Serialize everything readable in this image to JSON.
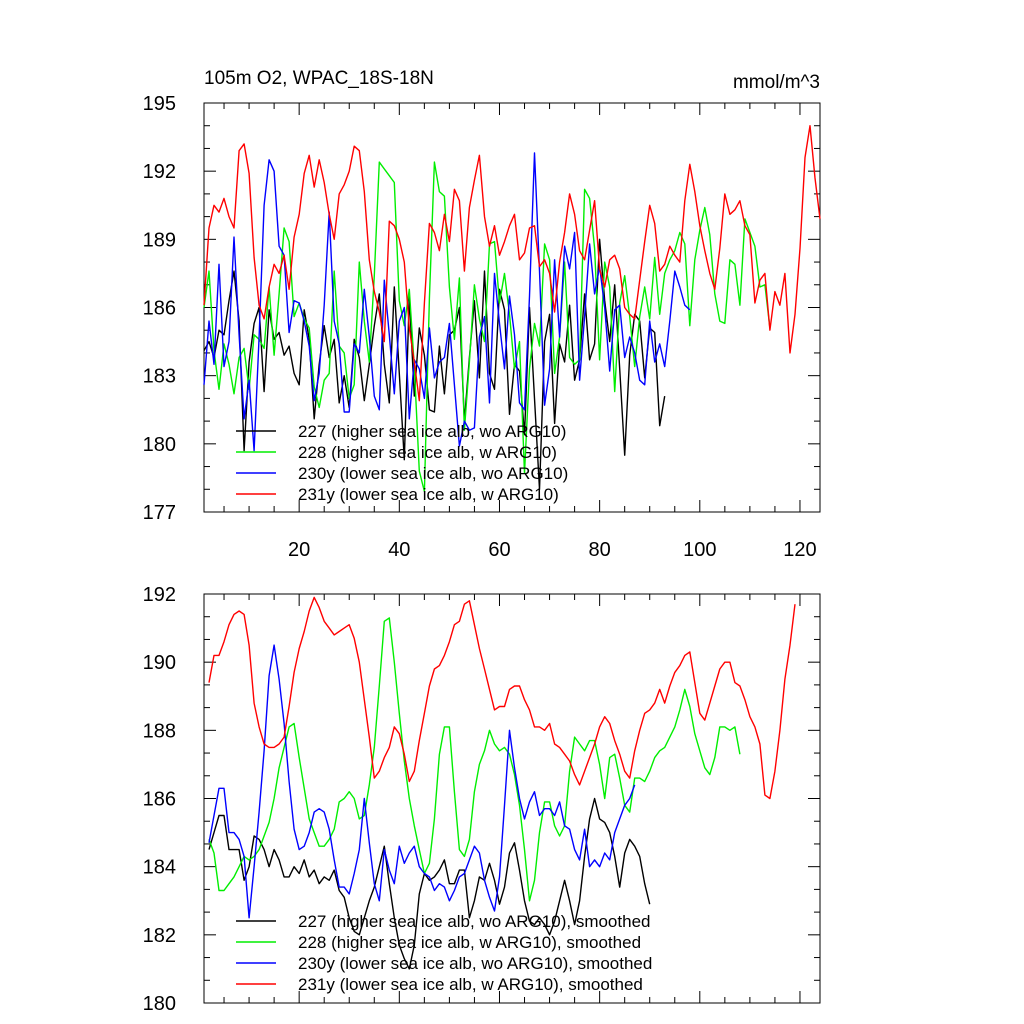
{
  "chart_data": [
    {
      "type": "line",
      "title": "105m O2, WPAC_18S-18N",
      "units": "mmol/m^3",
      "ylim": [
        177,
        195
      ],
      "yticks": [
        177,
        180,
        183,
        186,
        189,
        192,
        195
      ],
      "xlim": [
        1,
        124
      ],
      "xticks": [
        20,
        40,
        60,
        80,
        100,
        120
      ],
      "legend_position": "bottom-left",
      "series": [
        {
          "name": "227 (higher sea ice alb, wo ARG10)",
          "color": "#000000",
          "x_start": 1,
          "values": [
            184.1,
            184.5,
            183.8,
            185.0,
            184.8,
            186.3,
            187.6,
            185.4,
            179.7,
            183.6,
            185.3,
            186.0,
            182.3,
            185.9,
            184.6,
            184.9,
            183.9,
            184.3,
            183.1,
            182.6,
            185.9,
            184.6,
            181.1,
            183.5,
            185.2,
            183.8,
            184.6,
            181.8,
            183.0,
            181.6,
            184.6,
            183.8,
            181.9,
            183.5,
            185.2,
            186.6,
            183.5,
            181.8,
            186.9,
            183.1,
            179.3,
            186.5,
            182.1,
            185.1,
            183.9,
            181.5,
            181.4,
            184.3,
            182.2,
            184.8,
            185.0,
            186.0,
            181.0,
            183.8,
            186.3,
            182.9,
            187.6,
            183.1,
            182.4,
            186.8,
            185.9,
            181.3,
            183.5,
            183.2,
            180.4,
            186.0,
            182.0,
            178.0,
            184.5,
            185.7,
            180.9,
            184.4,
            183.6,
            186.1,
            182.8,
            183.7,
            186.6,
            183.7,
            184.4,
            189.0,
            186.3,
            184.5,
            187.0,
            183.3,
            179.5,
            183.9,
            185.7,
            185.4,
            182.9,
            185.1,
            184.9,
            180.8,
            182.1
          ]
        },
        {
          "name": "228 (higher sea ice alb, w ARG10)",
          "color": "#00ee00",
          "x_start": 1,
          "values": [
            186.0,
            187.6,
            184.1,
            182.4,
            184.4,
            183.5,
            182.2,
            183.8,
            184.2,
            182.4,
            184.8,
            184.6,
            184.2,
            186.9,
            183.9,
            186.6,
            189.5,
            188.9,
            185.6,
            186.2,
            185.5,
            185.1,
            182.5,
            181.6,
            182.8,
            183.1,
            187.6,
            184.3,
            184.0,
            182.0,
            182.6,
            188.0,
            185.4,
            183.6,
            187.4,
            192.4,
            192.1,
            191.8,
            191.5,
            186.3,
            185.2,
            186.8,
            183.4,
            178.8,
            177.9,
            186.4,
            192.4,
            191.1,
            190.9,
            186.9,
            184.6,
            187.3,
            180.6,
            183.6,
            187.0,
            185.5,
            184.5,
            188.8,
            188.9,
            186.2,
            187.5,
            185.7,
            183.3,
            184.5,
            178.7,
            183.3,
            185.3,
            184.3,
            188.8,
            188.1,
            183.1,
            184.7,
            188.0,
            183.8,
            183.5,
            183.7,
            191.2,
            190.8,
            188.6,
            183.7,
            188.0,
            186.9,
            182.3,
            186.2,
            187.4,
            185.6,
            183.4,
            185.6,
            186.9,
            185.5,
            188.2,
            185.7,
            187.5,
            188.1,
            188.5,
            189.3,
            188.8,
            185.2,
            188.1,
            189.4,
            190.4,
            189.2,
            186.6,
            185.4,
            185.3,
            188.1,
            187.9,
            186.1,
            189.9,
            189.3,
            188.7,
            186.9,
            187.0,
            185.1
          ]
        },
        {
          "name": "230y (lower sea ice alb, wo ARG10)",
          "color": "#0000ff",
          "x_start": 1,
          "values": [
            182.6,
            185.4,
            183.5,
            187.9,
            183.4,
            184.5,
            189.1,
            184.8,
            181.1,
            182.8,
            179.7,
            184.7,
            190.5,
            192.5,
            192.0,
            188.7,
            188.3,
            184.9,
            186.3,
            186.2,
            185.4,
            184.3,
            181.9,
            183.1,
            186.1,
            190.2,
            185.4,
            184.4,
            181.4,
            181.4,
            184.4,
            184.0,
            186.8,
            184.7,
            182.1,
            181.5,
            187.2,
            184.8,
            182.2,
            185.4,
            186.0,
            181.1,
            183.7,
            183.3,
            182.0,
            185.1,
            182.9,
            183.6,
            183.8,
            185.3,
            182.6,
            179.9,
            181.0,
            180.6,
            180.7,
            184.7,
            185.6,
            181.8,
            187.5,
            185.3,
            183.3,
            186.5,
            184.8,
            181.8,
            181.5,
            186.5,
            192.8,
            187.6,
            181.7,
            183.3,
            188.1,
            184.7,
            188.7,
            187.7,
            189.3,
            182.8,
            185.6,
            188.8,
            186.6,
            187.8,
            186.0,
            183.2,
            185.9,
            186.1,
            183.8,
            184.7,
            184.0,
            182.8,
            182.6,
            185.4,
            183.6,
            184.4,
            183.4,
            185.4,
            187.6,
            186.9,
            186.1,
            185.9
          ]
        },
        {
          "name": "231y (lower sea ice alb, w ARG10)",
          "color": "#ff0000",
          "x_start": 1,
          "values": [
            186.1,
            189.5,
            190.5,
            190.2,
            190.8,
            190.0,
            189.5,
            192.9,
            193.2,
            191.9,
            188.2,
            186.1,
            185.5,
            186.9,
            187.9,
            187.5,
            188.3,
            186.8,
            189.1,
            190.1,
            191.9,
            192.7,
            191.3,
            192.5,
            191.5,
            190.1,
            189.0,
            191.0,
            191.4,
            192.0,
            193.1,
            192.9,
            191.1,
            188.1,
            186.7,
            185.8,
            184.5,
            189.8,
            189.6,
            189.0,
            188.0,
            185.1,
            183.6,
            181.9,
            186.2,
            189.7,
            189.3,
            188.5,
            190.1,
            188.9,
            191.2,
            190.7,
            187.6,
            190.4,
            191.6,
            192.7,
            190.0,
            188.7,
            189.6,
            188.3,
            188.9,
            189.6,
            190.1,
            188.1,
            188.4,
            189.5,
            189.6,
            187.8,
            188.1,
            187.5,
            185.8,
            188.0,
            189.3,
            191.0,
            190.1,
            188.5,
            188.1,
            189.4,
            190.7,
            187.7,
            186.9,
            188.1,
            188.3,
            187.7,
            186.0,
            185.7,
            185.5,
            187.2,
            188.9,
            190.5,
            189.7,
            187.6,
            187.9,
            188.7,
            188.3,
            188.0,
            190.7,
            192.3,
            191.1,
            189.6,
            188.5,
            187.5,
            186.8,
            188.6,
            191.0,
            190.1,
            190.3,
            190.7,
            189.6,
            189.2,
            186.2,
            187.2,
            187.5,
            185.0,
            186.7,
            186.1,
            187.5,
            184.0,
            185.7,
            188.6,
            192.6,
            194.0,
            191.7,
            189.9
          ]
        }
      ]
    },
    {
      "type": "line",
      "ylim": [
        180,
        192
      ],
      "yticks": [
        180,
        182,
        184,
        186,
        188,
        190,
        192
      ],
      "xlim": [
        1,
        124
      ],
      "legend_position": "bottom-left",
      "series": [
        {
          "name": "227 (higher sea ice alb, wo ARG10), smoothed",
          "color": "#000000",
          "x_start": 2,
          "values": [
            184.5,
            185.0,
            185.5,
            185.5,
            184.5,
            184.5,
            184.5,
            183.6,
            184.0,
            184.9,
            184.8,
            184.5,
            184.0,
            184.5,
            184.2,
            183.7,
            183.7,
            184.0,
            183.8,
            184.2,
            183.7,
            183.9,
            183.5,
            183.7,
            183.6,
            183.9,
            183.3,
            183.1,
            182.5,
            182.1,
            182.0,
            182.5,
            183.0,
            183.4,
            184.0,
            184.6,
            183.5,
            182.5,
            181.7,
            181.3,
            181.0,
            181.7,
            183.2,
            183.8,
            183.6,
            183.7,
            183.9,
            184.2,
            183.5,
            183.5,
            183.9,
            183.9,
            182.5,
            183.0,
            183.7,
            183.6,
            184.1,
            183.6,
            182.9,
            183.4,
            184.4,
            184.7,
            183.9,
            183.0,
            182.4,
            182.3,
            182.5,
            182.3,
            182.0,
            182.4,
            183.0,
            183.6,
            183.0,
            182.3,
            183.0,
            184.3,
            185.4,
            186.0,
            185.4,
            185.3,
            185.0,
            184.3,
            183.4,
            184.4,
            184.8,
            184.6,
            184.3,
            183.5,
            182.9
          ]
        },
        {
          "name": "228 (higher sea ice alb, w ARG10), smoothed",
          "color": "#00ee00",
          "x_start": 2,
          "values": [
            184.8,
            184.4,
            183.3,
            183.3,
            183.5,
            183.7,
            184.0,
            184.3,
            184.2,
            184.3,
            184.5,
            184.9,
            185.3,
            186.0,
            186.9,
            187.5,
            188.1,
            188.2,
            187.2,
            186.3,
            185.4,
            185.0,
            184.6,
            184.6,
            184.8,
            185.1,
            185.9,
            186.0,
            186.2,
            186.0,
            185.4,
            185.5,
            186.4,
            187.5,
            189.3,
            191.2,
            191.3,
            190.0,
            188.5,
            187.1,
            186.0,
            185.2,
            184.5,
            183.8,
            184.1,
            185.4,
            187.3,
            188.1,
            188.1,
            186.2,
            184.5,
            184.3,
            184.8,
            186.2,
            187.0,
            187.4,
            188.0,
            187.6,
            187.4,
            187.5,
            187.3,
            186.7,
            185.8,
            184.5,
            183.0,
            183.6,
            185.0,
            185.9,
            185.9,
            185.2,
            184.9,
            185.2,
            186.8,
            187.8,
            187.6,
            187.4,
            187.7,
            187.7,
            187.0,
            186.0,
            187.2,
            187.3,
            186.6,
            185.8,
            185.6,
            186.6,
            186.6,
            186.5,
            186.8,
            187.2,
            187.4,
            187.5,
            187.8,
            188.1,
            188.6,
            189.2,
            188.7,
            187.9,
            187.4,
            186.9,
            186.7,
            187.2,
            188.1,
            188.1,
            188.0,
            188.1,
            187.3
          ]
        },
        {
          "name": "230y (lower sea ice alb, wo ARG10), smoothed",
          "color": "#0000ff",
          "x_start": 2,
          "values": [
            184.7,
            185.5,
            186.3,
            186.3,
            185.0,
            185.0,
            184.8,
            184.3,
            182.5,
            184.0,
            185.6,
            187.4,
            189.6,
            190.5,
            189.5,
            188.2,
            186.5,
            185.1,
            184.5,
            184.6,
            185.0,
            185.6,
            185.7,
            185.6,
            185.1,
            184.2,
            183.4,
            183.4,
            183.2,
            183.8,
            184.5,
            186.0,
            184.7,
            183.5,
            183.0,
            184.5,
            183.9,
            183.5,
            184.6,
            184.1,
            184.4,
            184.6,
            184.0,
            183.8,
            183.7,
            183.3,
            183.5,
            183.4,
            183.0,
            183.3,
            183.7,
            183.8,
            184.2,
            184.6,
            184.4,
            183.6,
            183.1,
            182.7,
            183.7,
            185.8,
            188.0,
            186.9,
            186.0,
            185.4,
            185.9,
            186.2,
            185.5,
            185.7,
            185.7,
            185.5,
            185.9,
            185.2,
            185.1,
            184.5,
            184.2,
            185.1,
            184.0,
            184.2,
            184.0,
            184.4,
            184.2,
            185.0,
            185.4,
            185.8,
            186.0,
            186.4
          ]
        },
        {
          "name": "231y (lower sea ice alb, w ARG10), smoothed",
          "color": "#ff0000",
          "x_start": 2,
          "values": [
            189.4,
            190.2,
            190.2,
            190.6,
            191.1,
            191.4,
            191.5,
            191.4,
            190.5,
            188.8,
            188.1,
            187.6,
            187.5,
            187.5,
            187.6,
            187.8,
            188.7,
            189.7,
            190.4,
            190.9,
            191.5,
            191.9,
            191.6,
            191.2,
            191.0,
            190.8,
            190.9,
            191.0,
            191.1,
            190.7,
            190.0,
            188.9,
            187.8,
            186.6,
            186.8,
            187.2,
            187.5,
            188.1,
            187.9,
            187.3,
            186.5,
            186.8,
            187.7,
            188.5,
            189.3,
            189.8,
            189.9,
            190.2,
            190.6,
            191.1,
            191.2,
            191.7,
            191.8,
            191.1,
            190.4,
            189.8,
            189.2,
            188.6,
            188.7,
            188.7,
            189.2,
            189.3,
            189.3,
            188.9,
            188.6,
            188.1,
            188.1,
            188.0,
            188.2,
            187.6,
            187.5,
            187.3,
            187.1,
            186.7,
            186.4,
            186.8,
            187.2,
            187.6,
            188.1,
            188.4,
            188.2,
            187.7,
            187.3,
            186.8,
            186.6,
            187.4,
            188.0,
            188.5,
            188.6,
            188.8,
            189.2,
            188.8,
            189.3,
            189.7,
            189.9,
            190.2,
            190.3,
            189.4,
            188.5,
            188.3,
            188.8,
            189.3,
            189.8,
            190.0,
            190.0,
            189.4,
            189.3,
            188.9,
            188.4,
            188.1,
            187.6,
            186.1,
            186.0,
            186.8,
            188.0,
            189.5,
            190.5,
            191.7
          ]
        }
      ]
    }
  ]
}
